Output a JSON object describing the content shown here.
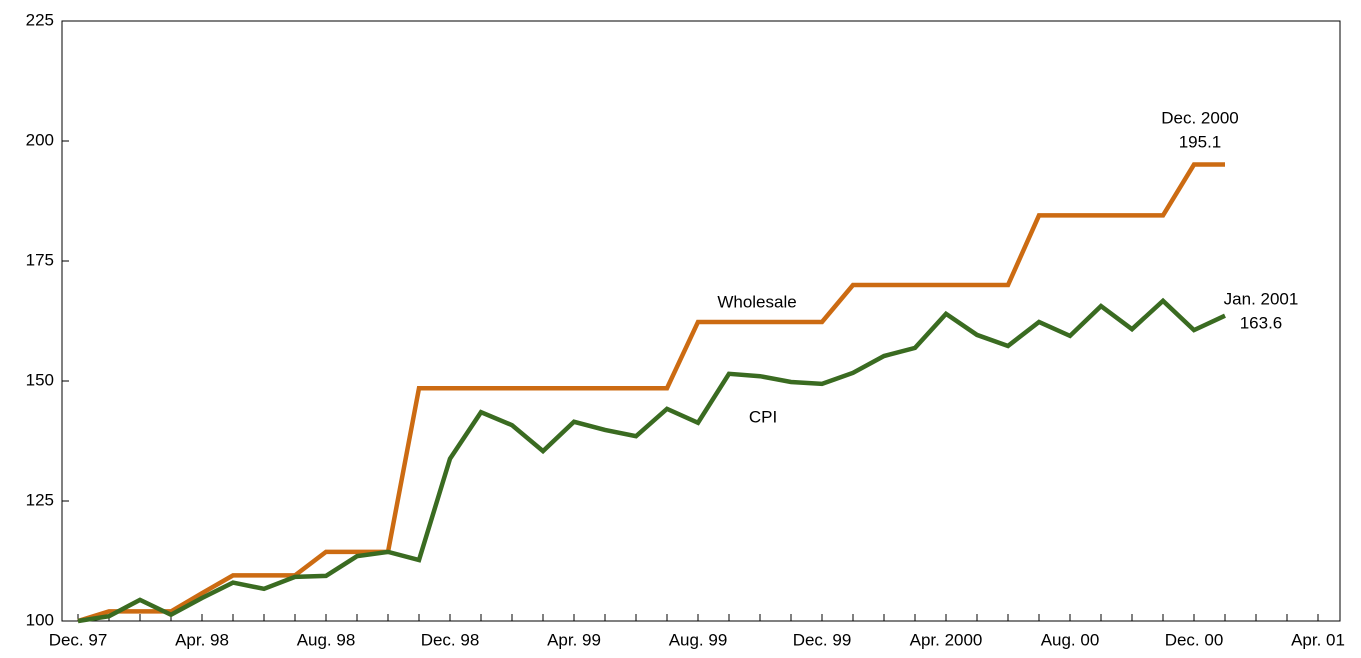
{
  "chart_data": {
    "type": "line",
    "categories": [
      "Dec. 97",
      null,
      null,
      null,
      "Apr. 98",
      null,
      null,
      null,
      "Aug. 98",
      null,
      null,
      null,
      "Dec. 98",
      null,
      null,
      null,
      "Apr. 99",
      null,
      null,
      null,
      "Aug. 99",
      null,
      null,
      null,
      "Dec. 99",
      null,
      null,
      null,
      "Apr. 2000",
      null,
      null,
      null,
      "Aug. 00",
      null,
      null,
      null,
      "Dec. 00",
      null,
      null,
      null,
      "Apr. 01"
    ],
    "series": [
      {
        "name": "Wholesale",
        "color": "#cc6b12",
        "values": [
          100,
          102,
          102,
          102,
          105.8,
          109.5,
          109.5,
          109.5,
          114.4,
          114.4,
          114.4,
          148.5,
          148.5,
          148.5,
          148.5,
          148.5,
          148.5,
          148.5,
          148.5,
          148.5,
          162.3,
          162.3,
          162.3,
          162.3,
          162.3,
          170,
          170,
          170,
          170,
          170,
          170,
          184.5,
          184.5,
          184.5,
          184.5,
          184.5,
          195.1,
          195.1,
          null,
          null,
          null
        ]
      },
      {
        "name": "CPI",
        "color": "#3a6b21",
        "values": [
          100,
          101,
          104.4,
          101.3,
          104.8,
          108,
          106.7,
          109.2,
          109.4,
          113.5,
          114.4,
          112.7,
          133.8,
          143.5,
          140.8,
          135.4,
          141.5,
          139.8,
          138.5,
          144.2,
          141.3,
          151.5,
          151,
          149.8,
          149.4,
          151.7,
          155.2,
          156.9,
          164,
          159.6,
          157.3,
          162.3,
          159.4,
          165.6,
          160.8,
          166.7,
          160.6,
          163.6,
          null,
          null,
          null
        ]
      }
    ],
    "annotations": [
      {
        "lines": [
          "Dec. 2000",
          "195.1"
        ]
      },
      {
        "lines": [
          "Jan. 2001",
          "163.6"
        ]
      }
    ],
    "ylim": [
      100,
      225
    ],
    "yticks": [
      100,
      125,
      150,
      175,
      200,
      225
    ],
    "grid": false
  }
}
